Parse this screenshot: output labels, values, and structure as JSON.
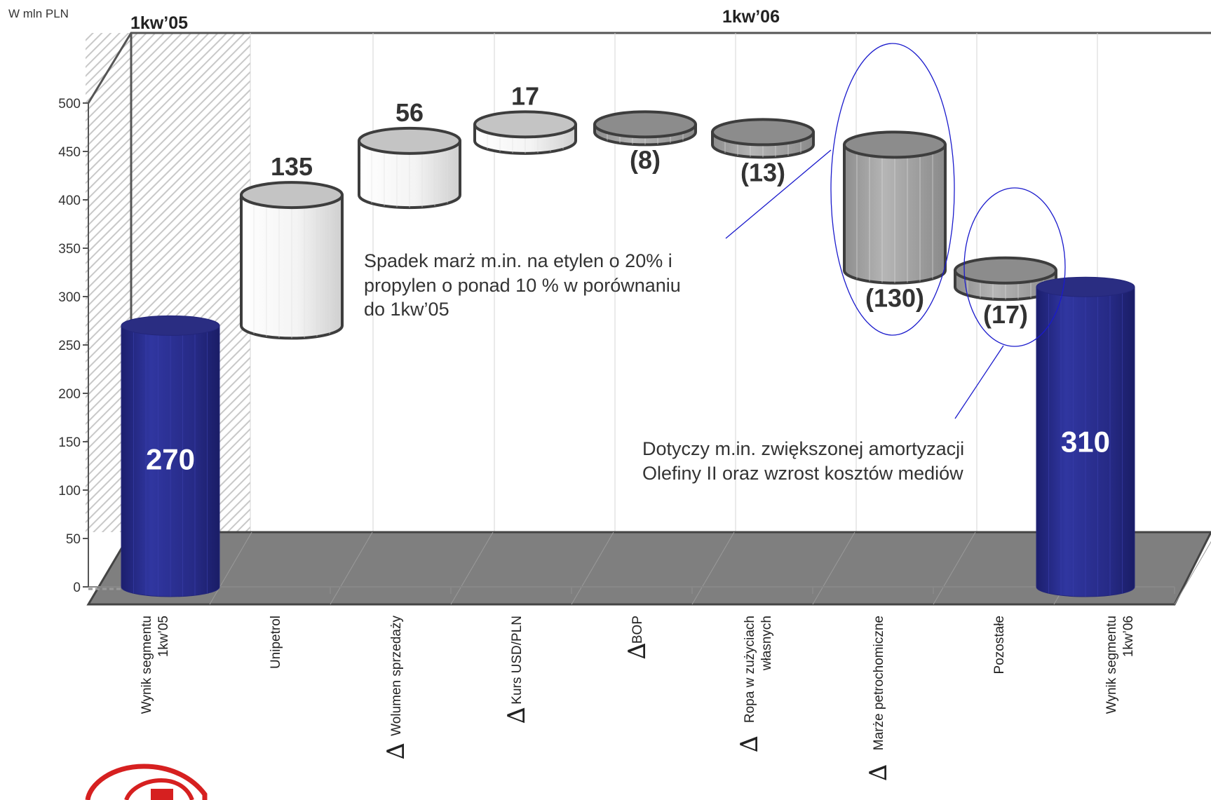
{
  "unit_label": "W mln PLN",
  "chart_data": {
    "type": "bar",
    "subtype": "waterfall",
    "ylim": [
      0,
      500
    ],
    "y_ticks": [
      "0",
      "50",
      "100",
      "150",
      "200",
      "250",
      "300",
      "350",
      "400",
      "450",
      "500"
    ],
    "period_labels": [
      "1kw’05",
      "1kw’06"
    ],
    "categories": [
      {
        "label": [
          "Wynik segmentu",
          "1kw’05"
        ],
        "delta": false
      },
      {
        "label": [
          "Unipetrol"
        ],
        "delta": false
      },
      {
        "label": [
          "Wolumen sprzedaży"
        ],
        "delta": true
      },
      {
        "label": [
          "Kurs USD/PLN"
        ],
        "delta": true
      },
      {
        "label": [
          "BOP"
        ],
        "delta": true
      },
      {
        "label": [
          "Ropa w zużyciach",
          "własnych"
        ],
        "delta": true
      },
      {
        "label": [
          "Marże petrochomiczne"
        ],
        "delta": true
      },
      {
        "label": [
          "Pozostałe"
        ],
        "delta": false
      },
      {
        "label": [
          "Wynik segmentu",
          "1kw’06"
        ],
        "delta": false
      }
    ],
    "delta_symbol": "∆",
    "values": [
      270,
      135,
      56,
      17,
      -8,
      -13,
      -130,
      -17,
      310
    ],
    "data_labels": [
      "270",
      "135",
      "56",
      "17",
      "(8)",
      "(13)",
      "(130)",
      "(17)",
      "310"
    ],
    "bar_kinds": [
      "total",
      "increase",
      "increase",
      "increase",
      "decrease",
      "decrease",
      "decrease",
      "decrease",
      "total"
    ],
    "grid": true,
    "colors": {
      "total": "#2b2f8f",
      "increase": "#f2f2f2",
      "decrease": "#a6a6a6",
      "floor": "#7f7f7f",
      "annotation": "#1a1acc"
    }
  },
  "annotations": [
    {
      "text": [
        "Spadek marż m.in. na etylen o 20% i",
        "propylen o ponad 10 % w porównaniu",
        "do 1kw’05"
      ]
    },
    {
      "text": [
        "Dotyczy m.in. zwiększonej amortyzacji",
        "Olefiny II oraz wzrost kosztów mediów"
      ]
    }
  ]
}
